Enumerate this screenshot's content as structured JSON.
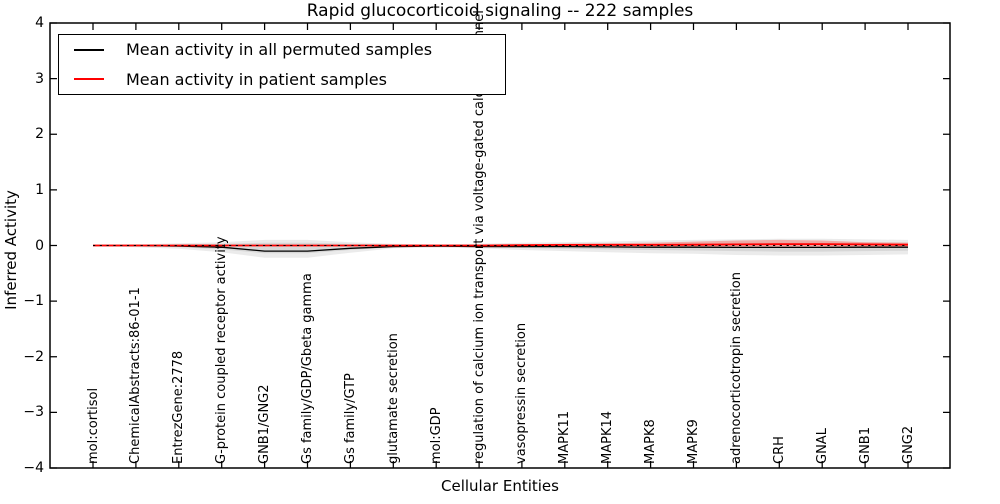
{
  "title": "Rapid glucocorticoid signaling -- 222 samples",
  "axes": {
    "xlabel": "Cellular Entities",
    "ylabel": "Inferred Activity"
  },
  "legend": {
    "position": "upper left",
    "entries": [
      {
        "label": "Mean activity in all permuted samples",
        "color": "#000000"
      },
      {
        "label": "Mean activity in patient samples",
        "color": "#ff0000"
      }
    ]
  },
  "colors": {
    "background": "#ffffff",
    "spine": "#000000",
    "band_gray_outer": "#e8e8e8",
    "band_gray_inner": "#d4d4d4",
    "band_pink": "#f0a09b",
    "permuted_line": "#000000",
    "patient_line": "#ff0000"
  },
  "chart_data": {
    "type": "line",
    "title": "Rapid glucocorticoid signaling -- 222 samples",
    "xlabel": "Cellular Entities",
    "ylabel": "Inferred Activity",
    "ylim": [
      -4,
      4
    ],
    "yticks": [
      4,
      3,
      2,
      1,
      0,
      -1,
      -2,
      -3,
      -4
    ],
    "grid": false,
    "legend_position": "upper left",
    "categories": [
      "mol:cortisol",
      "ChemicalAbstracts:86-01-1",
      "EntrezGene:2778",
      "G-protein coupled receptor activity",
      "GNB1/GNG2",
      "Gs family/GDP/Gbeta gamma",
      "Gs family/GTP",
      "glutamate secretion",
      "mol:GDP",
      "regulation of calcium ion transport via voltage-gated calcium channel",
      "vasopressin secretion",
      "MAPK11",
      "MAPK14",
      "MAPK8",
      "MAPK9",
      "adrenocorticotropin secretion",
      "CRH",
      "GNAL",
      "GNB1",
      "GNG2"
    ],
    "series": [
      {
        "name": "Mean activity in all permuted samples",
        "color": "#000000",
        "style": "solid",
        "values": [
          0,
          0,
          -0.01,
          -0.03,
          -0.1,
          -0.1,
          -0.05,
          -0.02,
          -0.01,
          -0.02,
          -0.02,
          -0.02,
          -0.025,
          -0.03,
          -0.03,
          -0.035,
          -0.035,
          -0.035,
          -0.03,
          -0.03
        ]
      },
      {
        "name": "Mean activity in patient samples",
        "color": "#ff0000",
        "style": "solid",
        "values": [
          0,
          0,
          0,
          0,
          0,
          0,
          0,
          0,
          0,
          0,
          0.005,
          0.01,
          0.01,
          0.01,
          0.015,
          0.02,
          0.025,
          0.025,
          0.02,
          0.015
        ]
      },
      {
        "name": "zero reference (dashed)",
        "color": "#000000",
        "style": "dashed",
        "values": [
          0,
          0,
          0,
          0,
          0,
          0,
          0,
          0,
          0,
          0,
          0,
          0,
          0,
          0,
          0,
          0,
          0,
          0,
          0,
          0
        ]
      }
    ],
    "bands": [
      {
        "name": "permuted activity range (outer)",
        "color": "#e8e8e8",
        "upper": [
          0.01,
          0.02,
          0.04,
          0.06,
          0.1,
          0.1,
          0.06,
          0.03,
          0.02,
          0.03,
          0.05,
          0.06,
          0.07,
          0.09,
          0.1,
          0.11,
          0.12,
          0.12,
          0.11,
          0.1
        ],
        "lower": [
          -0.01,
          -0.03,
          -0.06,
          -0.12,
          -0.22,
          -0.22,
          -0.13,
          -0.05,
          -0.04,
          -0.05,
          -0.08,
          -0.1,
          -0.12,
          -0.14,
          -0.15,
          -0.17,
          -0.18,
          -0.18,
          -0.17,
          -0.16
        ]
      },
      {
        "name": "permuted activity range (inner)",
        "color": "#d4d4d4",
        "upper": [
          0.005,
          0.01,
          0.02,
          0.03,
          0.05,
          0.05,
          0.03,
          0.015,
          0.01,
          0.015,
          0.025,
          0.03,
          0.04,
          0.05,
          0.05,
          0.06,
          0.065,
          0.065,
          0.06,
          0.055
        ],
        "lower": [
          -0.005,
          -0.015,
          -0.03,
          -0.07,
          -0.14,
          -0.14,
          -0.08,
          -0.03,
          -0.02,
          -0.03,
          -0.045,
          -0.06,
          -0.07,
          -0.08,
          -0.09,
          -0.1,
          -0.11,
          -0.11,
          -0.1,
          -0.095
        ]
      },
      {
        "name": "patient activity range",
        "color": "#f0a09b",
        "upper": [
          0.008,
          0.01,
          0.008,
          0.006,
          0.006,
          0.006,
          0.006,
          0.006,
          0.006,
          0.01,
          0.02,
          0.03,
          0.04,
          0.05,
          0.07,
          0.09,
          0.1,
          0.09,
          0.06,
          0.05
        ],
        "lower": [
          -0.006,
          -0.008,
          -0.006,
          -0.006,
          -0.006,
          -0.006,
          -0.006,
          -0.006,
          -0.006,
          -0.01,
          -0.012,
          -0.015,
          -0.02,
          -0.02,
          -0.025,
          -0.03,
          -0.035,
          -0.035,
          -0.03,
          -0.03
        ]
      }
    ]
  }
}
